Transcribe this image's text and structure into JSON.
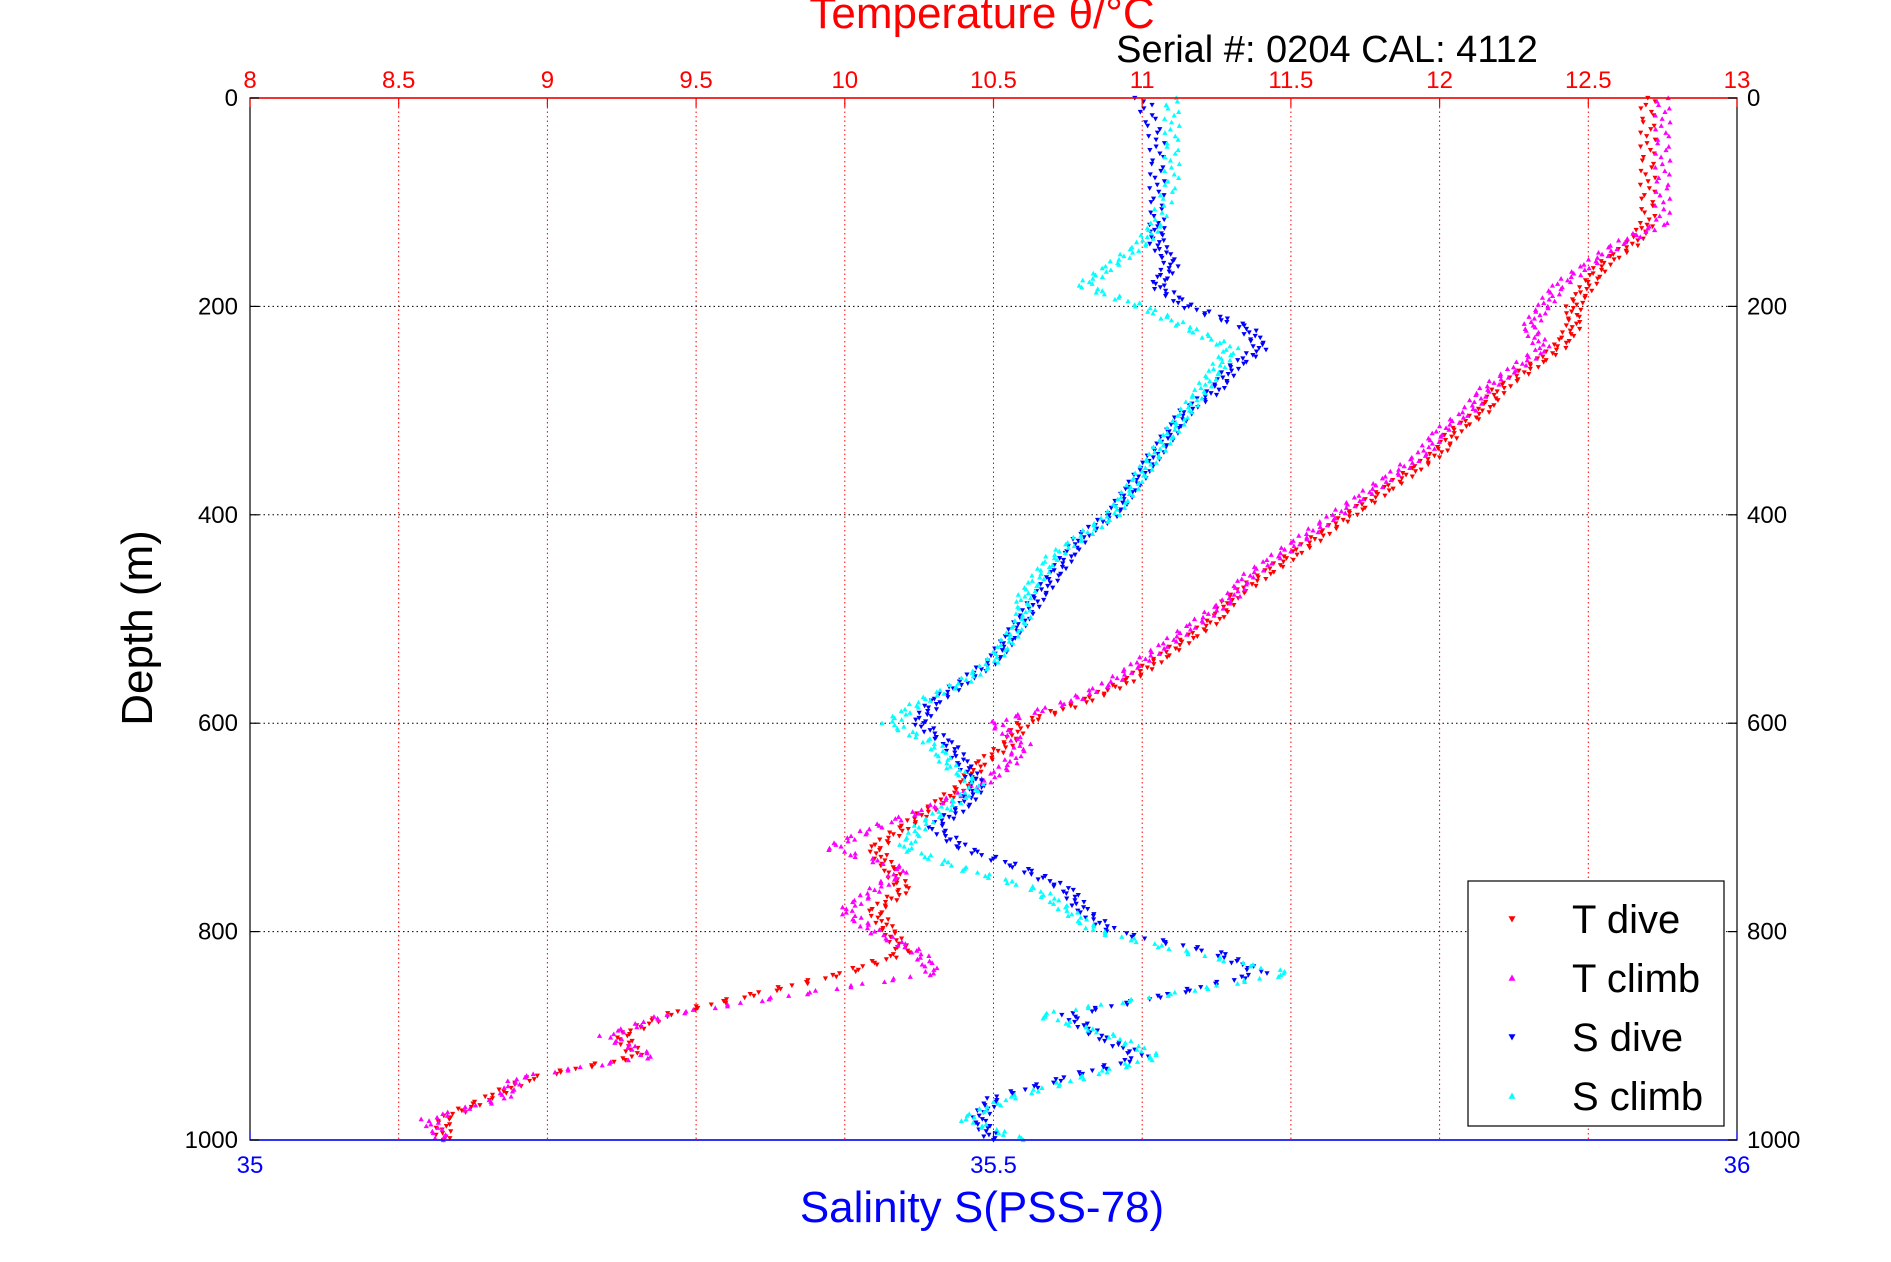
{
  "chart_data": {
    "type": "scatter",
    "title": "Temperature θ/°C",
    "subtitle": "Serial #: 0204  CAL: 4112",
    "ylabel": "Depth (m)",
    "xlabel": "Salinity S(PSS-78)",
    "y_axis": {
      "ylim": [
        0,
        1000
      ],
      "reversed": true,
      "ticks": [
        "0",
        "200",
        "400",
        "600",
        "800",
        "1000"
      ]
    },
    "x_axis_top": {
      "label": "Temperature θ/°C",
      "xlim": [
        8,
        13
      ],
      "ticks": [
        "8",
        "8.5",
        "9",
        "9.5",
        "10",
        "10.5",
        "11",
        "11.5",
        "12",
        "12.5",
        "13"
      ],
      "color": "#ff0000"
    },
    "x_axis_bottom": {
      "label": "Salinity S(PSS-78)",
      "xlim": [
        35,
        36
      ],
      "ticks": [
        "35",
        "35.5",
        "36"
      ],
      "color": "#0000ff"
    },
    "grid": true,
    "legend_position": "bottom-right",
    "series": [
      {
        "name": "T dive",
        "axis": "top",
        "color": "#ff0000",
        "points": [
          [
            0,
            12.7
          ],
          [
            40,
            12.7
          ],
          [
            80,
            12.7
          ],
          [
            120,
            12.7
          ],
          [
            140,
            12.65
          ],
          [
            160,
            12.55
          ],
          [
            180,
            12.5
          ],
          [
            200,
            12.45
          ],
          [
            220,
            12.45
          ],
          [
            240,
            12.4
          ],
          [
            260,
            12.3
          ],
          [
            280,
            12.2
          ],
          [
            300,
            12.15
          ],
          [
            320,
            12.05
          ],
          [
            340,
            12.0
          ],
          [
            360,
            11.9
          ],
          [
            380,
            11.8
          ],
          [
            400,
            11.7
          ],
          [
            420,
            11.6
          ],
          [
            440,
            11.5
          ],
          [
            460,
            11.4
          ],
          [
            480,
            11.3
          ],
          [
            500,
            11.25
          ],
          [
            520,
            11.15
          ],
          [
            540,
            11.05
          ],
          [
            560,
            10.95
          ],
          [
            580,
            10.8
          ],
          [
            600,
            10.6
          ],
          [
            620,
            10.55
          ],
          [
            640,
            10.45
          ],
          [
            660,
            10.4
          ],
          [
            680,
            10.3
          ],
          [
            700,
            10.2
          ],
          [
            720,
            10.1
          ],
          [
            740,
            10.15
          ],
          [
            760,
            10.2
          ],
          [
            780,
            10.1
          ],
          [
            800,
            10.15
          ],
          [
            820,
            10.2
          ],
          [
            840,
            10.0
          ],
          [
            860,
            9.7
          ],
          [
            880,
            9.4
          ],
          [
            900,
            9.25
          ],
          [
            920,
            9.3
          ],
          [
            940,
            8.95
          ],
          [
            960,
            8.8
          ],
          [
            980,
            8.65
          ],
          [
            1000,
            8.65
          ]
        ]
      },
      {
        "name": "T climb",
        "axis": "top",
        "color": "#ff00ff",
        "points": [
          [
            0,
            12.75
          ],
          [
            40,
            12.75
          ],
          [
            80,
            12.75
          ],
          [
            120,
            12.75
          ],
          [
            140,
            12.6
          ],
          [
            160,
            12.5
          ],
          [
            180,
            12.4
          ],
          [
            200,
            12.35
          ],
          [
            220,
            12.3
          ],
          [
            240,
            12.35
          ],
          [
            260,
            12.25
          ],
          [
            280,
            12.15
          ],
          [
            300,
            12.1
          ],
          [
            320,
            12.0
          ],
          [
            340,
            11.95
          ],
          [
            360,
            11.85
          ],
          [
            380,
            11.75
          ],
          [
            400,
            11.65
          ],
          [
            420,
            11.55
          ],
          [
            440,
            11.45
          ],
          [
            460,
            11.35
          ],
          [
            480,
            11.3
          ],
          [
            500,
            11.2
          ],
          [
            520,
            11.1
          ],
          [
            540,
            11.0
          ],
          [
            560,
            10.9
          ],
          [
            580,
            10.75
          ],
          [
            600,
            10.5
          ],
          [
            620,
            10.6
          ],
          [
            640,
            10.55
          ],
          [
            660,
            10.45
          ],
          [
            680,
            10.3
          ],
          [
            700,
            10.1
          ],
          [
            720,
            9.95
          ],
          [
            740,
            10.2
          ],
          [
            760,
            10.1
          ],
          [
            780,
            10.0
          ],
          [
            800,
            10.1
          ],
          [
            820,
            10.25
          ],
          [
            840,
            10.3
          ],
          [
            860,
            9.85
          ],
          [
            880,
            9.4
          ],
          [
            900,
            9.2
          ],
          [
            920,
            9.35
          ],
          [
            940,
            8.9
          ],
          [
            960,
            8.85
          ],
          [
            980,
            8.6
          ],
          [
            1000,
            8.65
          ]
        ]
      },
      {
        "name": "S dive",
        "axis": "bottom",
        "color": "#0000ff",
        "points": [
          [
            0,
            35.6
          ],
          [
            40,
            35.61
          ],
          [
            80,
            35.61
          ],
          [
            120,
            35.61
          ],
          [
            140,
            35.61
          ],
          [
            160,
            35.62
          ],
          [
            180,
            35.61
          ],
          [
            200,
            35.63
          ],
          [
            220,
            35.67
          ],
          [
            240,
            35.68
          ],
          [
            260,
            35.66
          ],
          [
            280,
            35.65
          ],
          [
            300,
            35.63
          ],
          [
            320,
            35.62
          ],
          [
            340,
            35.61
          ],
          [
            360,
            35.6
          ],
          [
            380,
            35.59
          ],
          [
            400,
            35.58
          ],
          [
            420,
            35.56
          ],
          [
            440,
            35.55
          ],
          [
            460,
            35.54
          ],
          [
            480,
            35.53
          ],
          [
            500,
            35.52
          ],
          [
            520,
            35.51
          ],
          [
            540,
            35.5
          ],
          [
            560,
            35.48
          ],
          [
            580,
            35.46
          ],
          [
            600,
            35.45
          ],
          [
            620,
            35.47
          ],
          [
            640,
            35.48
          ],
          [
            660,
            35.49
          ],
          [
            680,
            35.48
          ],
          [
            700,
            35.46
          ],
          [
            720,
            35.48
          ],
          [
            740,
            35.52
          ],
          [
            760,
            35.55
          ],
          [
            780,
            35.56
          ],
          [
            800,
            35.58
          ],
          [
            820,
            35.65
          ],
          [
            840,
            35.68
          ],
          [
            860,
            35.62
          ],
          [
            880,
            35.55
          ],
          [
            900,
            35.57
          ],
          [
            920,
            35.6
          ],
          [
            940,
            35.55
          ],
          [
            960,
            35.5
          ],
          [
            980,
            35.49
          ],
          [
            1000,
            35.5
          ]
        ]
      },
      {
        "name": "S climb",
        "axis": "bottom",
        "color": "#00ffff",
        "points": [
          [
            0,
            35.62
          ],
          [
            40,
            35.62
          ],
          [
            80,
            35.62
          ],
          [
            120,
            35.61
          ],
          [
            140,
            35.6
          ],
          [
            160,
            35.58
          ],
          [
            180,
            35.56
          ],
          [
            200,
            35.6
          ],
          [
            220,
            35.63
          ],
          [
            240,
            35.66
          ],
          [
            260,
            35.65
          ],
          [
            280,
            35.64
          ],
          [
            300,
            35.63
          ],
          [
            320,
            35.62
          ],
          [
            340,
            35.61
          ],
          [
            360,
            35.6
          ],
          [
            380,
            35.59
          ],
          [
            400,
            35.58
          ],
          [
            420,
            35.56
          ],
          [
            440,
            35.54
          ],
          [
            460,
            35.53
          ],
          [
            480,
            35.52
          ],
          [
            500,
            35.52
          ],
          [
            520,
            35.51
          ],
          [
            540,
            35.5
          ],
          [
            560,
            35.48
          ],
          [
            580,
            35.45
          ],
          [
            600,
            35.43
          ],
          [
            620,
            35.46
          ],
          [
            640,
            35.47
          ],
          [
            660,
            35.49
          ],
          [
            680,
            35.47
          ],
          [
            700,
            35.45
          ],
          [
            720,
            35.44
          ],
          [
            740,
            35.48
          ],
          [
            760,
            35.53
          ],
          [
            780,
            35.55
          ],
          [
            800,
            35.57
          ],
          [
            820,
            35.63
          ],
          [
            840,
            35.7
          ],
          [
            860,
            35.62
          ],
          [
            880,
            35.53
          ],
          [
            900,
            35.58
          ],
          [
            920,
            35.61
          ],
          [
            940,
            35.56
          ],
          [
            960,
            35.51
          ],
          [
            980,
            35.48
          ],
          [
            1000,
            35.52
          ]
        ]
      }
    ]
  }
}
